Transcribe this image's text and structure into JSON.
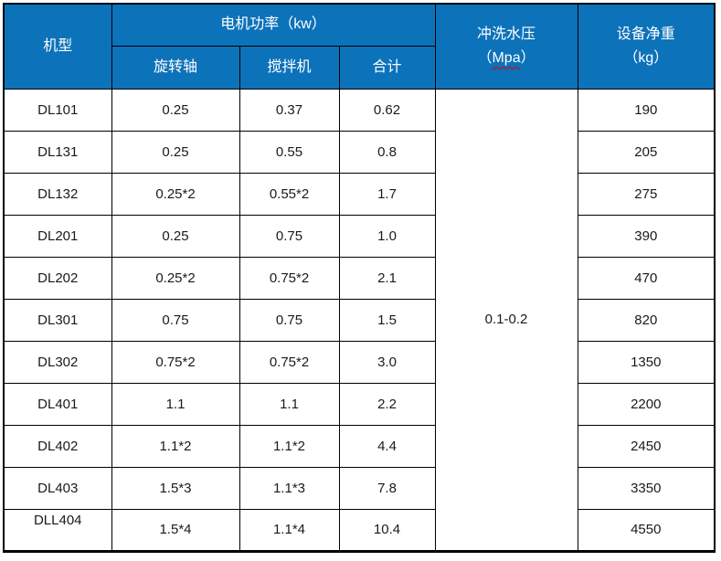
{
  "table": {
    "header": {
      "model": "机型",
      "motor_power": "电机功率（kw）",
      "sub_columns": {
        "shaft": "旋转轴",
        "mixer": "搅拌机",
        "total": "合计"
      },
      "water_pressure": {
        "line1": "冲洗水压",
        "paren_open": "（",
        "unit": "Mpa",
        "paren_close": "）"
      },
      "net_weight": {
        "line1": "设备净重",
        "line2": "（kg）"
      }
    },
    "pressure_value": "0.1-0.2",
    "rows": [
      {
        "model": "DL101",
        "shaft": "0.25",
        "mixer": "0.37",
        "total": "0.62",
        "weight": "190"
      },
      {
        "model": "DL131",
        "shaft": "0.25",
        "mixer": "0.55",
        "total": "0.8",
        "weight": "205"
      },
      {
        "model": "DL132",
        "shaft": "0.25*2",
        "mixer": "0.55*2",
        "total": "1.7",
        "weight": "275"
      },
      {
        "model": "DL201",
        "shaft": "0.25",
        "mixer": "0.75",
        "total": "1.0",
        "weight": "390"
      },
      {
        "model": "DL202",
        "shaft": "0.25*2",
        "mixer": "0.75*2",
        "total": "2.1",
        "weight": "470"
      },
      {
        "model": "DL301",
        "shaft": "0.75",
        "mixer": "0.75",
        "total": "1.5",
        "weight": "820"
      },
      {
        "model": "DL302",
        "shaft": "0.75*2",
        "mixer": "0.75*2",
        "total": "3.0",
        "weight": "1350"
      },
      {
        "model": "DL401",
        "shaft": "1.1",
        "mixer": "1.1",
        "total": "2.2",
        "weight": "2200"
      },
      {
        "model": "DL402",
        "shaft": "1.1*2",
        "mixer": "1.1*2",
        "total": "4.4",
        "weight": "2450"
      },
      {
        "model": "DL403",
        "shaft": "1.5*3",
        "mixer": "1.1*3",
        "total": "7.8",
        "weight": "3350"
      },
      {
        "model": "DLL404",
        "shaft": "1.5*4",
        "mixer": "1.1*4",
        "total": "10.4",
        "weight": "4550"
      }
    ]
  },
  "colors": {
    "header_bg": "#0c72ba",
    "header_text": "#ffffff",
    "grid": "#000000",
    "spellcheck_underline": "#e00000"
  }
}
